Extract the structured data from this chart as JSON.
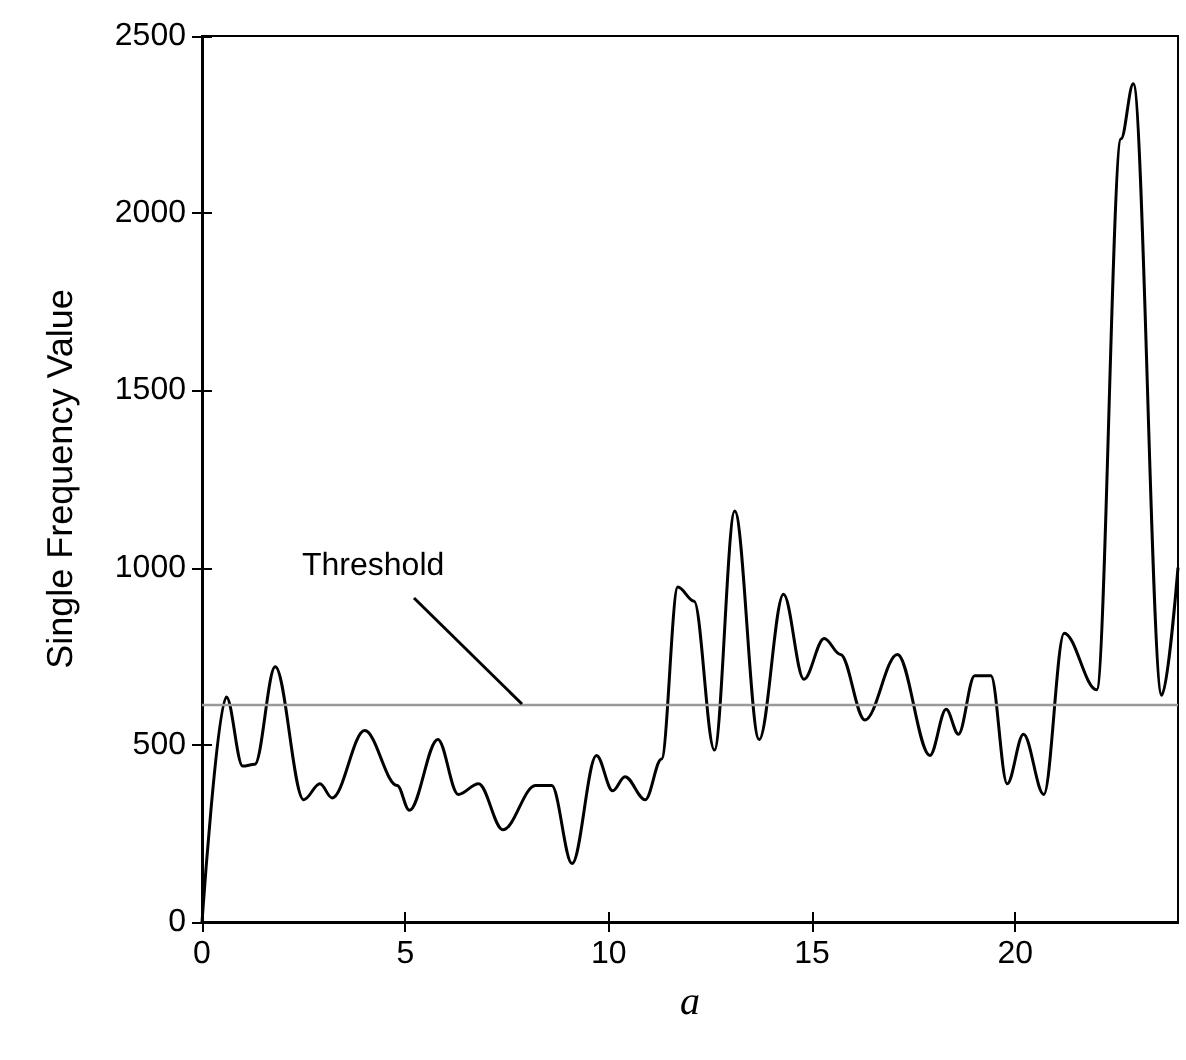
{
  "chart_data": {
    "type": "line",
    "xlabel": "a",
    "ylabel": "Single Frequency Value",
    "x": [
      0,
      0.6,
      1.0,
      1.3,
      1.8,
      2.5,
      2.9,
      3.2,
      4.0,
      4.8,
      5.1,
      5.8,
      6.3,
      6.8,
      7.4,
      8.2,
      8.6,
      9.1,
      9.7,
      10.1,
      10.4,
      10.9,
      11.3,
      11.7,
      12.1,
      12.6,
      13.1,
      13.7,
      14.3,
      14.8,
      15.3,
      15.7,
      16.3,
      17.1,
      17.9,
      18.3,
      18.6,
      19.0,
      19.4,
      19.8,
      20.2,
      20.7,
      21.2,
      22.0,
      22.6,
      22.9,
      23.6,
      24.0
    ],
    "series": [
      {
        "color": "#000000",
        "values": [
          0,
          635,
          440,
          445,
          720,
          345,
          390,
          350,
          540,
          385,
          315,
          515,
          360,
          390,
          260,
          385,
          385,
          165,
          470,
          370,
          410,
          345,
          460,
          945,
          905,
          485,
          1160,
          515,
          925,
          685,
          800,
          755,
          570,
          755,
          470,
          600,
          530,
          695,
          695,
          390,
          530,
          360,
          815,
          655,
          2210,
          2365,
          640,
          1000
        ]
      }
    ],
    "xlim": [
      0,
      24
    ],
    "xticks": [
      0,
      5,
      10,
      15,
      20
    ],
    "ylim": [
      0,
      2500
    ],
    "yticks": [
      0,
      500,
      1000,
      1500,
      2000,
      2500
    ],
    "marker": "none",
    "line_style": "solid",
    "ref_lines": [
      {
        "axis": "y",
        "value": 615,
        "label": "Threshold",
        "color": "#999999"
      }
    ]
  }
}
